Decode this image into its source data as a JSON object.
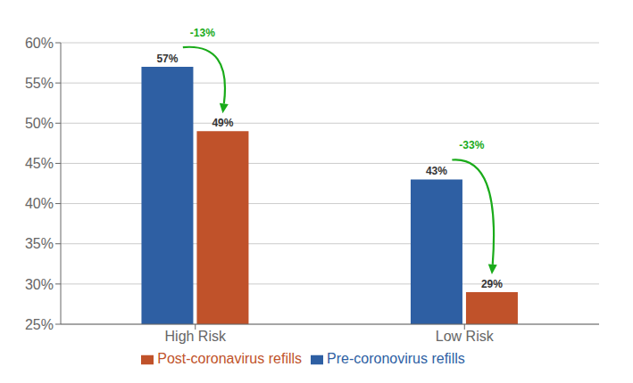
{
  "chart_data": {
    "type": "bar",
    "categories": [
      "High Risk",
      "Low Risk"
    ],
    "series": [
      {
        "name": "Pre-coronovirus refills",
        "color": "#2E5FA3",
        "values": [
          57,
          43
        ],
        "value_labels": [
          "57%",
          "43%"
        ]
      },
      {
        "name": "Post-coronavirus refills",
        "color": "#C0522A",
        "values": [
          49,
          29
        ],
        "value_labels": [
          "49%",
          "29%"
        ]
      }
    ],
    "ylim": [
      25,
      60
    ],
    "yticks": [
      {
        "value": 25,
        "label": "25%"
      },
      {
        "value": 30,
        "label": "30%"
      },
      {
        "value": 35,
        "label": "35%"
      },
      {
        "value": 40,
        "label": "40%"
      },
      {
        "value": 45,
        "label": "45%"
      },
      {
        "value": 50,
        "label": "50%"
      },
      {
        "value": 55,
        "label": "55%"
      },
      {
        "value": 60,
        "label": "60%"
      }
    ],
    "grid": true,
    "legend": "bottom",
    "data_labels": true,
    "annotations": [
      {
        "text": "-13%",
        "color": "#1AAB1A"
      },
      {
        "text": "-33%",
        "color": "#1AAB1A"
      }
    ]
  }
}
